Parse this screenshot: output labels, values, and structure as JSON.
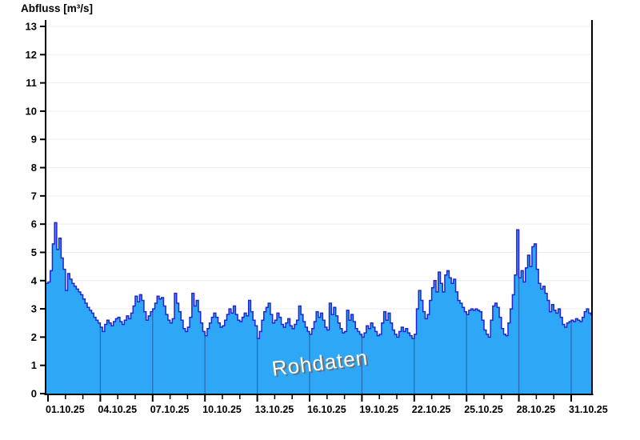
{
  "title": "Abfluss [m³/s]",
  "chart_data": {
    "type": "area",
    "title": "Abfluss [m³/s]",
    "ylabel": "Abfluss [m³/s]",
    "xlabel": "",
    "watermark": "Rohdaten",
    "legend": "none",
    "grid": "horizontal light gray at every integer; vertical major gridlines visible only inside the filled area",
    "ylim": [
      0,
      13
    ],
    "y_ticks": [
      0,
      1,
      2,
      3,
      4,
      5,
      6,
      7,
      8,
      9,
      10,
      11,
      12,
      13
    ],
    "x_axis": {
      "start_label": "01.10.25",
      "end_label": "31.10.25",
      "days_total": 30,
      "minor_tick_every_days": 1,
      "major_tick_every_days": 3,
      "major_labels": [
        "01.10.25",
        "04.10.25",
        "07.10.25",
        "10.10.25",
        "13.10.25",
        "16.10.25",
        "19.10.25",
        "22.10.25",
        "25.10.25",
        "28.10.25",
        "31.10.25"
      ]
    },
    "sampling": {
      "start_day": -0.125,
      "step_days": 0.125,
      "note": "values are m³/s read off the hydrograph, 3-hourly steps"
    },
    "series": [
      {
        "name": "Abfluss Rohdaten",
        "unit": "m³/s",
        "values": [
          3.9,
          3.95,
          4.35,
          5.3,
          6.05,
          5.1,
          5.5,
          4.8,
          4.4,
          3.65,
          4.25,
          4.05,
          3.9,
          3.8,
          3.7,
          3.6,
          3.5,
          3.35,
          3.2,
          3.05,
          2.95,
          2.85,
          2.7,
          2.6,
          2.5,
          2.35,
          2.2,
          2.45,
          2.6,
          2.5,
          2.4,
          2.55,
          2.65,
          2.7,
          2.55,
          2.45,
          2.6,
          2.75,
          2.65,
          2.85,
          3.1,
          3.45,
          3.25,
          3.5,
          3.3,
          2.9,
          2.6,
          2.75,
          2.9,
          3.0,
          3.2,
          3.45,
          3.35,
          3.4,
          3.1,
          2.8,
          2.6,
          2.5,
          2.65,
          3.55,
          3.2,
          2.9,
          2.6,
          2.3,
          2.2,
          2.35,
          2.7,
          3.55,
          3.1,
          3.3,
          2.9,
          2.5,
          2.2,
          2.05,
          2.3,
          2.5,
          2.7,
          2.85,
          2.7,
          2.5,
          2.35,
          2.4,
          2.6,
          2.8,
          3.0,
          2.85,
          3.1,
          2.8,
          2.6,
          2.55,
          2.7,
          2.85,
          2.75,
          3.3,
          2.9,
          2.6,
          2.4,
          1.95,
          2.2,
          2.6,
          2.9,
          3.05,
          3.2,
          2.8,
          2.5,
          2.6,
          2.85,
          2.7,
          2.45,
          2.35,
          2.5,
          2.65,
          2.4,
          2.3,
          2.45,
          2.6,
          3.1,
          2.8,
          2.55,
          2.35,
          2.2,
          2.1,
          2.3,
          2.55,
          2.9,
          2.7,
          2.85,
          2.6,
          2.35,
          2.25,
          3.2,
          2.8,
          3.05,
          2.75,
          2.5,
          2.3,
          2.15,
          2.2,
          2.95,
          2.6,
          2.8,
          2.55,
          2.3,
          2.2,
          2.1,
          2.0,
          2.15,
          2.4,
          2.3,
          2.5,
          2.35,
          2.2,
          2.05,
          2.1,
          2.5,
          2.9,
          2.6,
          2.85,
          2.5,
          2.25,
          2.1,
          2.0,
          2.2,
          2.35,
          2.2,
          2.3,
          2.15,
          2.05,
          1.95,
          2.1,
          3.0,
          3.65,
          3.3,
          2.9,
          2.65,
          2.8,
          3.3,
          3.75,
          4.0,
          3.6,
          4.3,
          3.9,
          3.6,
          4.2,
          4.35,
          4.1,
          3.9,
          4.05,
          3.6,
          3.3,
          3.2,
          3.05,
          2.9,
          2.8,
          2.95,
          3.0,
          2.95,
          3.0,
          2.95,
          2.9,
          2.6,
          2.25,
          2.1,
          2.0,
          2.6,
          3.1,
          3.2,
          3.05,
          2.7,
          2.3,
          2.1,
          2.05,
          2.5,
          3.0,
          3.5,
          4.2,
          5.8,
          4.1,
          4.35,
          3.95,
          4.45,
          4.9,
          4.5,
          5.2,
          5.3,
          4.4,
          3.9,
          3.7,
          3.8,
          3.55,
          3.3,
          2.9,
          3.15,
          2.95,
          2.85,
          3.0,
          2.7,
          2.45,
          2.35,
          2.5,
          2.55,
          2.6,
          2.55,
          2.65,
          2.6,
          2.55,
          2.7,
          2.9,
          3.0,
          2.85,
          2.8,
          2.75
        ]
      }
    ],
    "colors": {
      "fill": "#2ea7f7",
      "line": "#2222d2",
      "grid_horizontal": "#ededed",
      "grid_vertical_in_fill": "#2a6db6",
      "axis": "#000000",
      "background": "#ffffff",
      "watermark_text": "#ffffff",
      "watermark_shadow": "#6e6e6e",
      "tick_label": "#000000"
    }
  }
}
